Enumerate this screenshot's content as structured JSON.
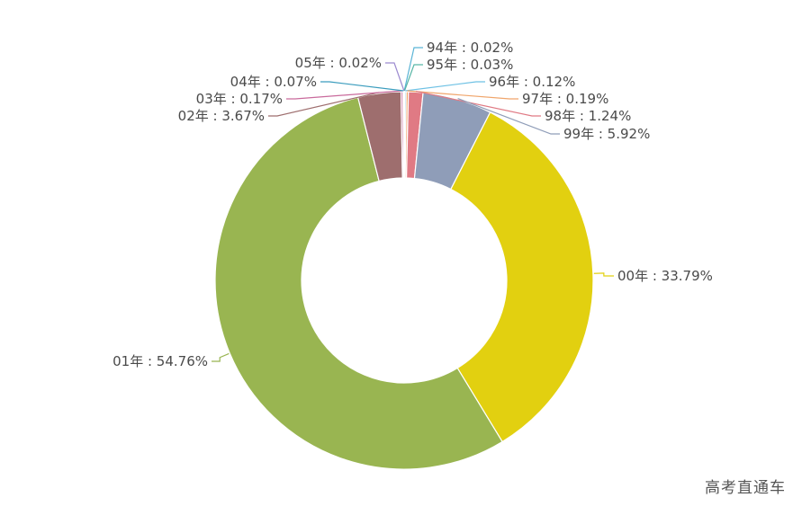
{
  "chart_data": {
    "type": "pie",
    "donut": true,
    "slices": [
      {
        "label": "94年",
        "value": 0.02,
        "text": "94年 : 0.02%",
        "color": "#5ab4d6"
      },
      {
        "label": "95年",
        "value": 0.03,
        "text": "95年 : 0.03%",
        "color": "#58b6a6"
      },
      {
        "label": "96年",
        "value": 0.12,
        "text": "96年 : 0.12%",
        "color": "#6ec1e4"
      },
      {
        "label": "97年",
        "value": 0.19,
        "text": "97年 : 0.19%",
        "color": "#f0a56b"
      },
      {
        "label": "98年",
        "value": 1.24,
        "text": "98年 : 1.24%",
        "color": "#e07a84"
      },
      {
        "label": "99年",
        "value": 5.92,
        "text": "99年 : 5.92%",
        "color": "#8f9db8"
      },
      {
        "label": "00年",
        "value": 33.79,
        "text": "00年 : 33.79%",
        "color": "#e2d010"
      },
      {
        "label": "01年",
        "value": 54.76,
        "text": "01年 : 54.76%",
        "color": "#99b551"
      },
      {
        "label": "02年",
        "value": 3.67,
        "text": "02年 : 3.67%",
        "color": "#9e6e6e"
      },
      {
        "label": "03年",
        "value": 0.17,
        "text": "03年 : 0.17%",
        "color": "#c96a9c"
      },
      {
        "label": "04年",
        "value": 0.07,
        "text": "04年 : 0.07%",
        "color": "#3a9cbd"
      },
      {
        "label": "05年",
        "value": 0.02,
        "text": "05年 : 0.02%",
        "color": "#9c8ad0"
      }
    ]
  },
  "watermark": "高考直通车"
}
